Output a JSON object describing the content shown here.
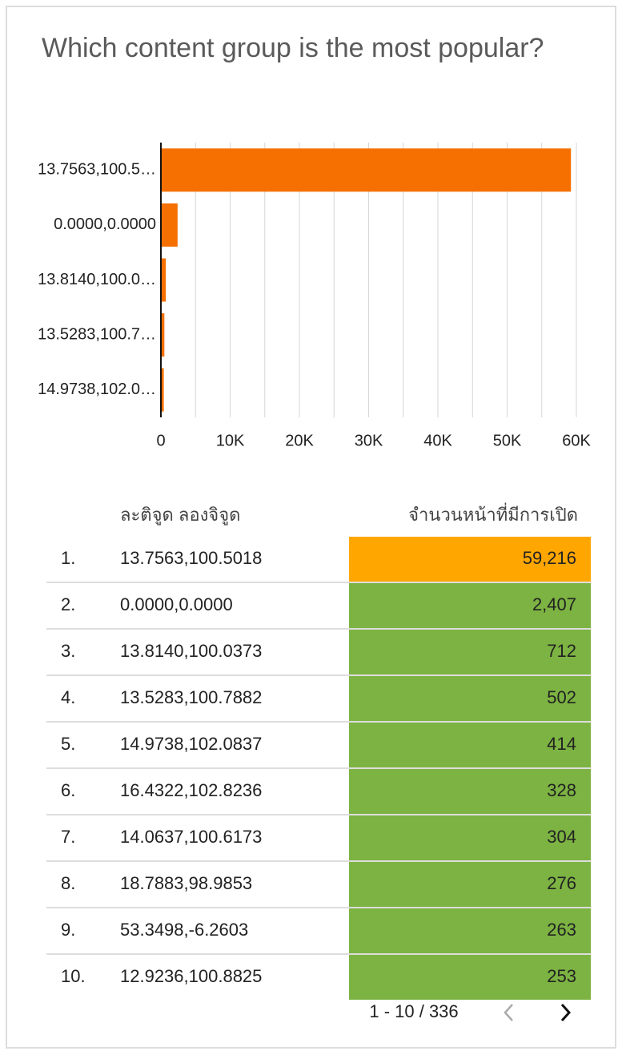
{
  "chart_data": {
    "type": "bar",
    "orientation": "horizontal",
    "title": "Which content group is the most popular?",
    "categories": [
      "13.7563,100.5…",
      "0.0000,0.0000",
      "13.8140,100.0…",
      "13.5283,100.7…",
      "14.9738,102.0…"
    ],
    "values": [
      59216,
      2407,
      712,
      502,
      414
    ],
    "color": "#f57000",
    "xlim": [
      0,
      60000
    ],
    "xticks": [
      0,
      {
        "value": 10000,
        "label": "10K"
      },
      {
        "value": 20000,
        "label": "20K"
      },
      {
        "value": 30000,
        "label": "30K"
      },
      {
        "value": 40000,
        "label": "40K"
      },
      {
        "value": 50000,
        "label": "50K"
      },
      {
        "value": 60000,
        "label": "60K"
      }
    ],
    "minor_xticks": [
      5000,
      15000,
      25000,
      35000,
      45000,
      55000
    ],
    "grid": true
  },
  "table": {
    "headers": [
      "ละติจูด ลองจิจูด",
      "จำนวนหน้าที่มีการเปิด"
    ],
    "highlight_color": "#ffa600",
    "cell_color": "#7cb342",
    "rows": [
      [
        "1.",
        "13.7563,100.5018",
        "59,216"
      ],
      [
        "2.",
        "0.0000,0.0000",
        "2,407"
      ],
      [
        "3.",
        "13.8140,100.0373",
        "712"
      ],
      [
        "4.",
        "13.5283,100.7882",
        "502"
      ],
      [
        "5.",
        "14.9738,102.0837",
        "414"
      ],
      [
        "6.",
        "16.4322,102.8236",
        "328"
      ],
      [
        "7.",
        "14.0637,100.6173",
        "304"
      ],
      [
        "8.",
        "18.7883,98.9853",
        "276"
      ],
      [
        "9.",
        "53.3498,-6.2603",
        "263"
      ],
      [
        "10.",
        "12.9236,100.8825",
        "253"
      ]
    ],
    "pagination": "1 - 10 / 336"
  }
}
